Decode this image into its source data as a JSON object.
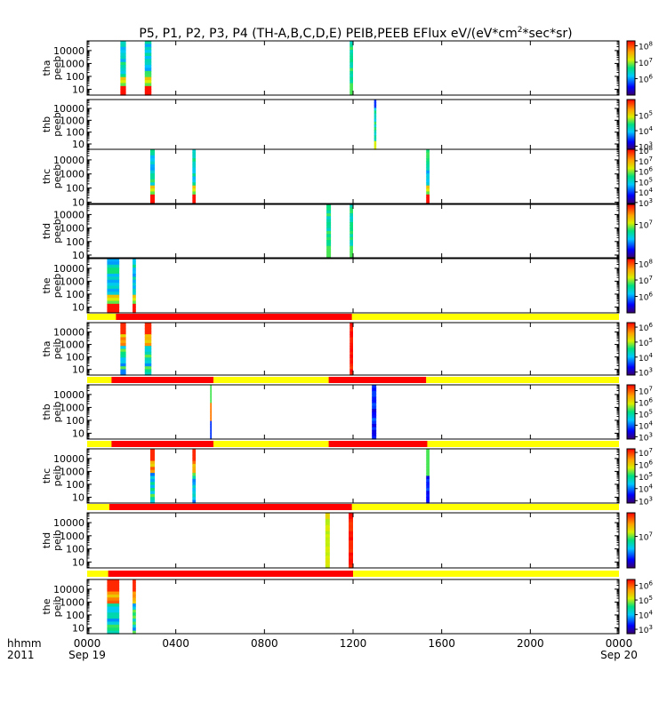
{
  "chart_data": {
    "type": "heatmap",
    "title_main": "P5, P1, P2, P3, P4 (TH-A,B,C,D,E) PEIB,PEEB EFlux eV/(eV*cm",
    "title_sup": "2",
    "title_tail": "*sec*sr)",
    "x_axis": {
      "corner_label_1": "hhmm",
      "corner_label_2": "2011",
      "range_hours": [
        0,
        24
      ],
      "ticks": [
        {
          "t": 0,
          "label": "0000",
          "sub": "Sep 19"
        },
        {
          "t": 4,
          "label": "0400",
          "sub": ""
        },
        {
          "t": 8,
          "label": "0800",
          "sub": ""
        },
        {
          "t": 12,
          "label": "1200",
          "sub": ""
        },
        {
          "t": 16,
          "label": "1600",
          "sub": ""
        },
        {
          "t": 20,
          "label": "2000",
          "sub": ""
        },
        {
          "t": 24,
          "label": "0000",
          "sub": "Sep 20"
        }
      ]
    },
    "y_scale": "log",
    "panels": [
      {
        "label_1": "tha",
        "label_2": "peeb",
        "yticks": [
          "10000",
          "1000",
          "100",
          "10"
        ],
        "yrange_log": [
          0.55,
          4.75
        ],
        "colorbar_ticks": [
          {
            "v": 8,
            "label": "10",
            "exp": "8"
          },
          {
            "v": 7,
            "label": "10",
            "exp": "7"
          },
          {
            "v": 6,
            "label": "10",
            "exp": "6"
          }
        ],
        "colorbar_log": [
          5.0,
          8.3
        ],
        "bursts": [
          {
            "t0": 1.5,
            "t1": 1.75,
            "profile": "full"
          },
          {
            "t0": 2.6,
            "t1": 2.9,
            "profile": "full"
          },
          {
            "t0": 11.85,
            "t1": 12.0,
            "profile": "green"
          }
        ]
      },
      {
        "label_1": "thb",
        "label_2": "peeb",
        "yticks": [
          "10000",
          "1000",
          "100",
          "10"
        ],
        "yrange_log": [
          0.55,
          4.75
        ],
        "colorbar_ticks": [
          {
            "v": 5,
            "label": "10",
            "exp": "5"
          },
          {
            "v": 4,
            "label": "10",
            "exp": "4"
          },
          {
            "v": 3,
            "label": "10",
            "exp": "3"
          }
        ],
        "colorbar_log": [
          2.8,
          6.0
        ],
        "bursts": [
          {
            "t0": 12.95,
            "t1": 13.05,
            "profile": "thin"
          }
        ]
      },
      {
        "label_1": "thc",
        "label_2": "peeb",
        "yticks": [
          "10000",
          "1000",
          "100",
          "10"
        ],
        "yrange_log": [
          0.9,
          4.75
        ],
        "colorbar_ticks": [
          {
            "v": 8,
            "label": "10",
            "exp": "8"
          },
          {
            "v": 7,
            "label": "10",
            "exp": "7"
          },
          {
            "v": 6,
            "label": "10",
            "exp": "6"
          },
          {
            "v": 5,
            "label": "10",
            "exp": "5"
          },
          {
            "v": 4,
            "label": "10",
            "exp": "4"
          },
          {
            "v": 3,
            "label": "10",
            "exp": "3"
          }
        ],
        "colorbar_log": [
          2.9,
          8.1
        ],
        "bursts": [
          {
            "t0": 2.85,
            "t1": 3.05,
            "profile": "full"
          },
          {
            "t0": 4.75,
            "t1": 4.9,
            "profile": "full"
          },
          {
            "t0": 15.3,
            "t1": 15.45,
            "profile": "full"
          }
        ]
      },
      {
        "label_1": "thd",
        "label_2": "peeb",
        "yticks": [
          "10000",
          "1000",
          "100",
          "10"
        ],
        "yrange_log": [
          0.8,
          4.75
        ],
        "colorbar_ticks": [
          {
            "v": 7,
            "label": "10",
            "exp": "7"
          }
        ],
        "colorbar_log": [
          6.0,
          7.6
        ],
        "bursts": [
          {
            "t0": 10.8,
            "t1": 11.0,
            "profile": "green"
          },
          {
            "t0": 11.85,
            "t1": 12.0,
            "profile": "green"
          }
        ]
      },
      {
        "label_1": "the",
        "label_2": "peeb",
        "yticks": [
          "10000",
          "1000",
          "100",
          "10"
        ],
        "yrange_log": [
          0.55,
          4.75
        ],
        "colorbar_ticks": [
          {
            "v": 8,
            "label": "10",
            "exp": "8"
          },
          {
            "v": 7,
            "label": "10",
            "exp": "7"
          },
          {
            "v": 6,
            "label": "10",
            "exp": "6"
          }
        ],
        "colorbar_log": [
          5.0,
          8.3
        ],
        "bursts": [
          {
            "t0": 0.9,
            "t1": 1.45,
            "profile": "full"
          },
          {
            "t0": 2.05,
            "t1": 2.2,
            "profile": "full"
          }
        ]
      },
      {
        "label_1": "tha",
        "label_2": "peib",
        "yticks": [
          "10000",
          "1000",
          "100",
          "10"
        ],
        "yrange_log": [
          0.55,
          4.75
        ],
        "colorbar_ticks": [
          {
            "v": 6,
            "label": "10",
            "exp": "6"
          },
          {
            "v": 5,
            "label": "10",
            "exp": "5"
          },
          {
            "v": 4,
            "label": "10",
            "exp": "4"
          },
          {
            "v": 3,
            "label": "10",
            "exp": "3"
          }
        ],
        "colorbar_log": [
          2.8,
          6.3
        ],
        "mode_bar": [
          {
            "t0": 0,
            "t1": 1.3,
            "c": "yellow"
          },
          {
            "t0": 1.3,
            "t1": 11.95,
            "c": "red"
          },
          {
            "t0": 11.95,
            "t1": 24,
            "c": "yellow"
          }
        ],
        "bursts": [
          {
            "t0": 1.5,
            "t1": 1.75,
            "profile": "ion"
          },
          {
            "t0": 2.6,
            "t1": 2.9,
            "profile": "ion"
          },
          {
            "t0": 11.85,
            "t1": 12.0,
            "profile": "redcol"
          }
        ]
      },
      {
        "label_1": "thb",
        "label_2": "peib",
        "yticks": [
          "10000",
          "1000",
          "100",
          "10"
        ],
        "yrange_log": [
          0.55,
          4.75
        ],
        "colorbar_ticks": [
          {
            "v": 7,
            "label": "10",
            "exp": "7"
          },
          {
            "v": 6,
            "label": "10",
            "exp": "6"
          },
          {
            "v": 5,
            "label": "10",
            "exp": "5"
          },
          {
            "v": 4,
            "label": "10",
            "exp": "4"
          },
          {
            "v": 3,
            "label": "10",
            "exp": "3"
          }
        ],
        "colorbar_log": [
          2.8,
          7.5
        ],
        "mode_bar": [
          {
            "t0": 0,
            "t1": 1.1,
            "c": "yellow"
          },
          {
            "t0": 1.1,
            "t1": 5.7,
            "c": "red"
          },
          {
            "t0": 5.7,
            "t1": 10.9,
            "c": "yellow"
          },
          {
            "t0": 10.9,
            "t1": 15.3,
            "c": "red"
          },
          {
            "t0": 15.3,
            "t1": 24,
            "c": "yellow"
          }
        ],
        "bursts": [
          {
            "t0": 5.55,
            "t1": 5.62,
            "profile": "small"
          },
          {
            "t0": 12.85,
            "t1": 13.05,
            "profile": "dark"
          }
        ]
      },
      {
        "label_1": "thc",
        "label_2": "peib",
        "yticks": [
          "10000",
          "1000",
          "100",
          "10"
        ],
        "yrange_log": [
          0.55,
          4.75
        ],
        "colorbar_ticks": [
          {
            "v": 7,
            "label": "10",
            "exp": "7"
          },
          {
            "v": 6,
            "label": "10",
            "exp": "6"
          },
          {
            "v": 5,
            "label": "10",
            "exp": "5"
          },
          {
            "v": 4,
            "label": "10",
            "exp": "4"
          },
          {
            "v": 3,
            "label": "10",
            "exp": "3"
          }
        ],
        "colorbar_log": [
          2.8,
          7.3
        ],
        "mode_bar": [
          {
            "t0": 0,
            "t1": 1.1,
            "c": "yellow"
          },
          {
            "t0": 1.1,
            "t1": 5.7,
            "c": "red"
          },
          {
            "t0": 5.7,
            "t1": 10.9,
            "c": "yellow"
          },
          {
            "t0": 10.9,
            "t1": 15.35,
            "c": "red"
          },
          {
            "t0": 15.35,
            "t1": 24,
            "c": "yellow"
          }
        ],
        "bursts": [
          {
            "t0": 2.85,
            "t1": 3.05,
            "profile": "ion"
          },
          {
            "t0": 4.75,
            "t1": 4.9,
            "profile": "ion"
          },
          {
            "t0": 15.3,
            "t1": 15.45,
            "profile": "darkbot"
          }
        ]
      },
      {
        "label_1": "thd",
        "label_2": "peib",
        "yticks": [
          "10000",
          "1000",
          "100",
          "10"
        ],
        "yrange_log": [
          0.55,
          4.75
        ],
        "colorbar_ticks": [
          {
            "v": 7,
            "label": "10",
            "exp": "7"
          }
        ],
        "colorbar_log": [
          6.2,
          7.6
        ],
        "mode_bar": [
          {
            "t0": 0,
            "t1": 1.0,
            "c": "yellow"
          },
          {
            "t0": 1.0,
            "t1": 11.95,
            "c": "red"
          },
          {
            "t0": 11.95,
            "t1": 24,
            "c": "yellow"
          }
        ],
        "bursts": [
          {
            "t0": 10.75,
            "t1": 10.95,
            "profile": "yelcol"
          },
          {
            "t0": 11.8,
            "t1": 12.0,
            "profile": "redcol"
          }
        ]
      },
      {
        "label_1": "the",
        "label_2": "peib",
        "yticks": [
          "10000",
          "1000",
          "100",
          "10"
        ],
        "yrange_log": [
          0.55,
          4.75
        ],
        "colorbar_ticks": [
          {
            "v": 6,
            "label": "10",
            "exp": "6"
          },
          {
            "v": 5,
            "label": "10",
            "exp": "5"
          },
          {
            "v": 4,
            "label": "10",
            "exp": "4"
          },
          {
            "v": 3,
            "label": "10",
            "exp": "3"
          }
        ],
        "colorbar_log": [
          2.7,
          6.4
        ],
        "mode_bar": [
          {
            "t0": 0,
            "t1": 0.95,
            "c": "yellow"
          },
          {
            "t0": 0.95,
            "t1": 12.0,
            "c": "red"
          },
          {
            "t0": 12.0,
            "t1": 24,
            "c": "yellow"
          }
        ],
        "bursts": [
          {
            "t0": 0.9,
            "t1": 1.45,
            "profile": "ion"
          },
          {
            "t0": 2.05,
            "t1": 2.2,
            "profile": "ion"
          }
        ]
      }
    ]
  }
}
